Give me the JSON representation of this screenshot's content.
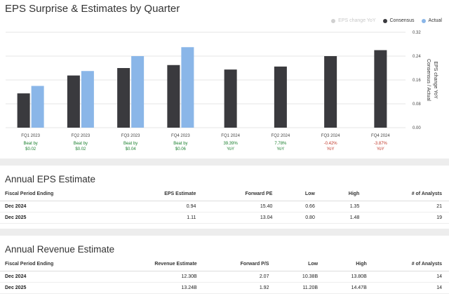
{
  "chart": {
    "title": "EPS Surprise & Estimates by Quarter",
    "legend": [
      {
        "label": "EPS change YoY",
        "color": "#d0d0d0",
        "faded": true
      },
      {
        "label": "Consensus",
        "color": "#3a3a3e",
        "faded": false
      },
      {
        "label": "Actual",
        "color": "#8ab6e8",
        "faded": false
      }
    ],
    "y_axis_label": "EPS change YoY",
    "y_axis_label2": "Consensus / Actual"
  },
  "chart_data": {
    "type": "bar",
    "categories": [
      "FQ1 2023",
      "FQ2 2023",
      "FQ3 2023",
      "FQ4 2023",
      "FQ1 2024",
      "FQ2 2024",
      "FQ3 2024",
      "FQ4 2024"
    ],
    "series": [
      {
        "name": "Consensus",
        "values": [
          0.115,
          0.175,
          0.2,
          0.21,
          0.195,
          0.205,
          0.24,
          0.26
        ]
      },
      {
        "name": "Actual",
        "values": [
          0.14,
          0.19,
          0.24,
          0.27,
          null,
          null,
          null,
          null
        ]
      }
    ],
    "ylim": [
      0,
      0.32
    ],
    "yticks": [
      "0.00",
      "0.08",
      "0.16",
      "0.24",
      "0.32"
    ],
    "ytick_values": [
      0,
      0.08,
      0.16,
      0.24,
      0.32
    ],
    "annotations": [
      {
        "line1": "Beat by",
        "line2": "$0.02",
        "tone": "green"
      },
      {
        "line1": "Beat by",
        "line2": "$0.02",
        "tone": "green"
      },
      {
        "line1": "Beat by",
        "line2": "$0.04",
        "tone": "green"
      },
      {
        "line1": "Beat by",
        "line2": "$0.06",
        "tone": "green"
      },
      {
        "line1": "39.39%",
        "line2": "YoY",
        "tone": "green"
      },
      {
        "line1": "7.78%",
        "line2": "YoY",
        "tone": "green"
      },
      {
        "line1": "-0.42%",
        "line2": "YoY",
        "tone": "red"
      },
      {
        "line1": "-3.87%",
        "line2": "YoY",
        "tone": "red"
      }
    ],
    "colors": {
      "consensus": "#3a3a3e",
      "actual": "#8ab6e8",
      "green": "#1a7f2e",
      "red": "#c0392b"
    }
  },
  "eps_table": {
    "title": "Annual EPS Estimate",
    "headers": [
      "Fiscal Period Ending",
      "EPS Estimate",
      "Forward PE",
      "Low",
      "High",
      "# of Analysts"
    ],
    "rows": [
      [
        "Dec 2024",
        "0.94",
        "15.40",
        "0.66",
        "1.35",
        "21"
      ],
      [
        "Dec 2025",
        "1.11",
        "13.04",
        "0.80",
        "1.48",
        "19"
      ]
    ]
  },
  "revenue_table": {
    "title": "Annual Revenue Estimate",
    "headers": [
      "Fiscal Period Ending",
      "Revenue Estimate",
      "Forward P/S",
      "Low",
      "High",
      "# of Analysts"
    ],
    "rows": [
      [
        "Dec 2024",
        "12.30B",
        "2.07",
        "10.38B",
        "13.80B",
        "14"
      ],
      [
        "Dec 2025",
        "13.24B",
        "1.92",
        "11.20B",
        "14.47B",
        "14"
      ]
    ]
  }
}
